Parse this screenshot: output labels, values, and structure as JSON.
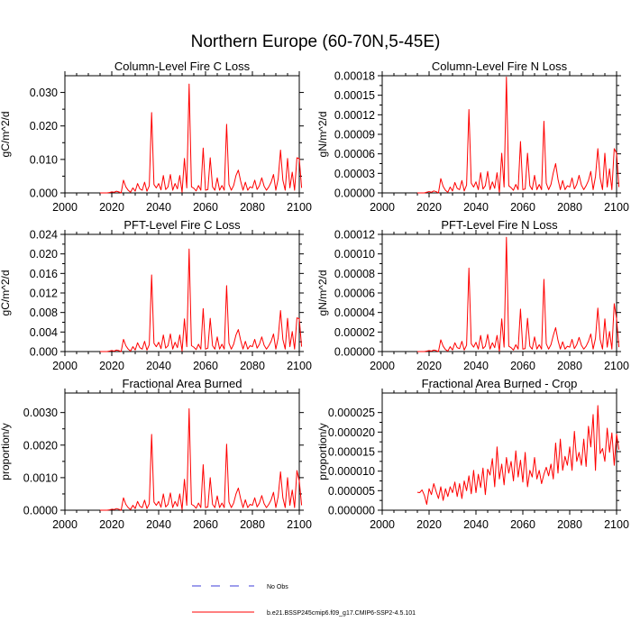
{
  "figure_title": "Northern Europe (60-70N,5-45E)",
  "x_start": 2015,
  "x_step": 1,
  "chart_data": [
    {
      "type": "line",
      "title": "Column-Level Fire C Loss",
      "ylabel": "gC/m^2/d",
      "xlabel": "",
      "xlim": [
        2000,
        2100
      ],
      "ylim": [
        0,
        0.035
      ],
      "yticks": [
        0,
        0.01,
        0.02,
        0.03
      ],
      "ytick_labels": [
        "0.000",
        "0.010",
        "0.020",
        "0.030"
      ],
      "xticks": [
        2000,
        2020,
        2040,
        2060,
        2080,
        2100
      ],
      "xtick_labels": [
        "2000",
        "2020",
        "2040",
        "2060",
        "2080",
        "2100"
      ],
      "series": [
        {
          "name": "b.e21.BSSP245cmip6.f09_g17.CMIP6-SSP2-4.5.101",
          "color": "#ff0000",
          "values": [
            0,
            0,
            0,
            0,
            0.0001,
            0.0003,
            0.0002,
            0.0005,
            0.0003,
            0,
            0.0038,
            0.0018,
            0.0008,
            0.0002,
            0.0015,
            0.0005,
            0.0028,
            0.0012,
            0.0008,
            0.0032,
            0.0005,
            0.0021,
            0.024,
            0.0025,
            0.0015,
            0.0028,
            0.0009,
            0.0052,
            0.001,
            0.0018,
            0.0055,
            0.0008,
            0.0028,
            0.0012,
            0.0052,
            0.0002,
            0.0103,
            0.0015,
            0.0325,
            0.0018,
            0.0014,
            0.0006,
            0.0022,
            0.0008,
            0.0134,
            0.0008,
            0.001,
            0.0105,
            0.0018,
            0.0008,
            0.0045,
            0.0008,
            0.0022,
            0.0008,
            0.0205,
            0.0025,
            0.0008,
            0.0022,
            0.0052,
            0.0068,
            0.0035,
            0.0008,
            0.0032,
            0.0008,
            0.0018,
            0.0015,
            0.0038,
            0.001,
            0.0022,
            0.0045,
            0.002,
            0.0008,
            0.0018,
            0.0032,
            0.0055,
            0.0008,
            0.0042,
            0.0128,
            0.0038,
            0.0008,
            0.0103,
            0.0015,
            0.0062,
            0.0008,
            0.0105,
            0.0102,
            0.0015
          ]
        }
      ]
    },
    {
      "type": "line",
      "title": "Column-Level Fire N Loss",
      "ylabel": "gN/m^2/d",
      "xlabel": "",
      "xlim": [
        2000,
        2100
      ],
      "ylim": [
        0,
        0.00018
      ],
      "yticks": [
        0,
        3e-05,
        6e-05,
        9e-05,
        0.00012,
        0.00015,
        0.00018
      ],
      "ytick_labels": [
        "0.00000",
        "0.00003",
        "0.00006",
        "0.00009",
        "0.00012",
        "0.00015",
        "0.00018"
      ],
      "xticks": [
        2000,
        2020,
        2040,
        2060,
        2080,
        2100
      ],
      "xtick_labels": [
        "2000",
        "2020",
        "2040",
        "2060",
        "2080",
        "2100"
      ],
      "series": [
        {
          "name": "b.e21.BSSP245cmip6.f09_g17.CMIP6-SSP2-4.5.101",
          "color": "#ff0000",
          "values": [
            0,
            0,
            0,
            0,
            1e-06,
            2e-06,
            1e-06,
            3e-06,
            2e-06,
            0,
            2.2e-05,
            1e-05,
            4e-06,
            1e-06,
            9e-06,
            3e-06,
            1.6e-05,
            7e-06,
            5e-06,
            1.9e-05,
            3e-06,
            1.2e-05,
            0.000128,
            1.5e-05,
            9e-06,
            1.7e-05,
            5e-06,
            3.1e-05,
            6e-06,
            1.1e-05,
            3.3e-05,
            5e-06,
            1.7e-05,
            7e-06,
            3.1e-05,
            1e-06,
            6.1e-05,
            9e-06,
            0.000178,
            1.1e-05,
            8e-06,
            4e-06,
            1.3e-05,
            5e-06,
            7.9e-05,
            5e-06,
            6e-06,
            6.1e-05,
            1.1e-05,
            5e-06,
            2.7e-05,
            5e-06,
            1.3e-05,
            5e-06,
            0.00011,
            1.5e-05,
            5e-06,
            1.3e-05,
            3.1e-05,
            4.5e-05,
            2.1e-05,
            5e-06,
            1.9e-05,
            5e-06,
            1.1e-05,
            9e-06,
            2.3e-05,
            6e-06,
            1.3e-05,
            2.7e-05,
            1.2e-05,
            5e-06,
            1.1e-05,
            1.9e-05,
            3.3e-05,
            5e-06,
            2.5e-05,
            6.8e-05,
            2.3e-05,
            5e-06,
            6.1e-05,
            9e-06,
            3.7e-05,
            5e-06,
            6.8e-05,
            6.1e-05,
            9e-06
          ]
        }
      ]
    },
    {
      "type": "line",
      "title": "PFT-Level Fire C Loss",
      "ylabel": "gC/m^2/d",
      "xlabel": "",
      "xlim": [
        2000,
        2100
      ],
      "ylim": [
        0,
        0.024
      ],
      "yticks": [
        0,
        0.004,
        0.008,
        0.012,
        0.016,
        0.02,
        0.024
      ],
      "ytick_labels": [
        "0.000",
        "0.004",
        "0.008",
        "0.012",
        "0.016",
        "0.020",
        "0.024"
      ],
      "xticks": [
        2000,
        2020,
        2040,
        2060,
        2080,
        2100
      ],
      "xtick_labels": [
        "2000",
        "2020",
        "2040",
        "2060",
        "2080",
        "2100"
      ],
      "series": [
        {
          "name": "b.e21.BSSP245cmip6.f09_g17.CMIP6-SSP2-4.5.101",
          "color": "#ff0000",
          "values": [
            0,
            0,
            0,
            0,
            0.0001,
            0.0002,
            0.0001,
            0.0003,
            0.0002,
            0,
            0.0025,
            0.0012,
            0.0005,
            0.0001,
            0.001,
            0.0003,
            0.0018,
            0.0008,
            0.0005,
            0.0021,
            0.0003,
            0.0014,
            0.0157,
            0.0017,
            0.001,
            0.0019,
            0.0006,
            0.0034,
            0.0007,
            0.0012,
            0.0036,
            0.0005,
            0.0019,
            0.0008,
            0.0034,
            0.0001,
            0.0067,
            0.001,
            0.021,
            0.0012,
            0.0009,
            0.0004,
            0.0015,
            0.0005,
            0.0088,
            0.0005,
            0.0007,
            0.0068,
            0.0012,
            0.0005,
            0.003,
            0.0005,
            0.0015,
            0.0005,
            0.0135,
            0.0017,
            0.0005,
            0.0015,
            0.0034,
            0.0045,
            0.0023,
            0.0005,
            0.0021,
            0.0005,
            0.0012,
            0.001,
            0.0025,
            0.0007,
            0.0015,
            0.003,
            0.0013,
            0.0005,
            0.0012,
            0.0021,
            0.0036,
            0.0005,
            0.0028,
            0.0084,
            0.0025,
            0.0005,
            0.0068,
            0.001,
            0.0041,
            0.0005,
            0.0069,
            0.0067,
            0.001
          ]
        }
      ]
    },
    {
      "type": "line",
      "title": "PFT-Level Fire N Loss",
      "ylabel": "gN/m^2/d",
      "xlabel": "",
      "xlim": [
        2000,
        2100
      ],
      "ylim": [
        0,
        0.00012
      ],
      "yticks": [
        0,
        2e-05,
        4e-05,
        6e-05,
        8e-05,
        0.0001,
        0.00012
      ],
      "ytick_labels": [
        "0.00000",
        "0.00002",
        "0.00004",
        "0.00006",
        "0.00008",
        "0.00010",
        "0.00012"
      ],
      "xticks": [
        2000,
        2020,
        2040,
        2060,
        2080,
        2100
      ],
      "xtick_labels": [
        "2000",
        "2020",
        "2040",
        "2060",
        "2080",
        "2100"
      ],
      "series": [
        {
          "name": "b.e21.BSSP245cmip6.f09_g17.CMIP6-SSP2-4.5.101",
          "color": "#ff0000",
          "values": [
            0,
            0,
            0,
            0,
            5e-07,
            1e-06,
            5e-07,
            1.5e-06,
            1e-06,
            0,
            1.2e-05,
            5.5e-06,
            2e-06,
            5e-07,
            5e-06,
            1.5e-06,
            9e-06,
            4e-06,
            3e-06,
            1.05e-05,
            1.5e-06,
            6.5e-06,
            8.55e-05,
            8e-06,
            4.5e-06,
            9.5e-06,
            2.5e-06,
            1.65e-05,
            3e-06,
            5.5e-06,
            1.75e-05,
            2.5e-06,
            9e-06,
            4e-06,
            1.65e-05,
            5e-07,
            3.35e-05,
            4.5e-06,
            0.000117,
            5.5e-06,
            4e-06,
            1.5e-06,
            7e-06,
            2.5e-06,
            4.35e-05,
            2.5e-06,
            3e-06,
            3.4e-05,
            5.5e-06,
            2.5e-06,
            1.5e-05,
            2.5e-06,
            7e-06,
            2.5e-06,
            7.4e-05,
            8e-06,
            2.5e-06,
            7e-06,
            1.65e-05,
            2.45e-05,
            1.15e-05,
            2.5e-06,
            1e-05,
            2.5e-06,
            5.5e-06,
            4.5e-06,
            1.25e-05,
            3e-06,
            7e-06,
            1.45e-05,
            6.5e-06,
            2.5e-06,
            5.5e-06,
            1.05e-05,
            1.8e-05,
            2.5e-06,
            1.35e-05,
            4.45e-05,
            1.25e-05,
            2.5e-06,
            3.35e-05,
            4.5e-06,
            2.05e-05,
            2.5e-06,
            4.9e-05,
            3.35e-05,
            4.5e-06
          ]
        }
      ]
    },
    {
      "type": "line",
      "title": "Fractional Area Burned",
      "ylabel": "proportion/y",
      "xlabel": "",
      "xlim": [
        2000,
        2100
      ],
      "ylim": [
        0,
        0.0036
      ],
      "yticks": [
        0,
        0.001,
        0.002,
        0.003
      ],
      "ytick_labels": [
        "0.0000",
        "0.0010",
        "0.0020",
        "0.0030"
      ],
      "xticks": [
        2000,
        2020,
        2040,
        2060,
        2080,
        2100
      ],
      "xtick_labels": [
        "2000",
        "2020",
        "2040",
        "2060",
        "2080",
        "2100"
      ],
      "series": [
        {
          "name": "b.e21.BSSP245cmip6.f09_g17.CMIP6-SSP2-4.5.101",
          "color": "#ff0000",
          "values": [
            0,
            0,
            0,
            0,
            1e-05,
            3e-05,
            2e-05,
            5e-05,
            3e-05,
            0,
            0.00038,
            0.00018,
            8e-05,
            2e-05,
            0.00015,
            5e-05,
            0.00027,
            0.00012,
            8e-05,
            0.00031,
            5e-05,
            0.0002,
            0.00233,
            0.00025,
            0.00015,
            0.00027,
            9e-05,
            0.0005,
            0.0001,
            0.00018,
            0.00053,
            8e-05,
            0.00027,
            0.00012,
            0.0005,
            2e-05,
            0.00095,
            0.00015,
            0.00312,
            0.00018,
            0.00014,
            6e-05,
            0.00022,
            8e-05,
            0.0014,
            8e-05,
            0.0001,
            0.001,
            0.00018,
            8e-05,
            0.00044,
            8e-05,
            0.00022,
            8e-05,
            0.00203,
            0.00025,
            8e-05,
            0.00022,
            0.0005,
            0.00068,
            0.00035,
            8e-05,
            0.00032,
            8e-05,
            0.00018,
            0.00015,
            0.00038,
            0.0001,
            0.00022,
            0.00045,
            0.0002,
            8e-05,
            0.00018,
            0.00032,
            0.00055,
            8e-05,
            0.00042,
            0.00118,
            0.00038,
            8e-05,
            0.001,
            0.00015,
            0.00062,
            8e-05,
            0.00122,
            0.0009,
            0.00015
          ]
        }
      ]
    },
    {
      "type": "line",
      "title": "Fractional Area Burned - Crop",
      "ylabel": "proportion/y",
      "xlabel": "",
      "xlim": [
        2000,
        2100
      ],
      "ylim": [
        0,
        3e-05
      ],
      "yticks": [
        0,
        5e-06,
        1e-05,
        1.5e-05,
        2e-05,
        2.5e-05
      ],
      "ytick_labels": [
        "0.000000",
        "0.000005",
        "0.000010",
        "0.000015",
        "0.000020",
        "0.000025"
      ],
      "xticks": [
        2000,
        2020,
        2040,
        2060,
        2080,
        2100
      ],
      "xtick_labels": [
        "2000",
        "2020",
        "2040",
        "2060",
        "2080",
        "2100"
      ],
      "series": [
        {
          "name": "b.e21.BSSP245cmip6.f09_g17.CMIP6-SSP2-4.5.101",
          "color": "#ff0000",
          "values": [
            4.6e-06,
            4.5e-06,
            5.2e-06,
            3.8e-06,
            1.5e-06,
            5.5e-06,
            4e-06,
            6.8e-06,
            4.8e-06,
            3e-06,
            6e-06,
            2.5e-06,
            5.5e-06,
            3.5e-06,
            6e-06,
            4.5e-06,
            7.2e-06,
            3.5e-06,
            6.8e-06,
            3e-06,
            7.5e-06,
            5e-06,
            8.8e-06,
            4.2e-06,
            1.02e-05,
            4.5e-06,
            9.2e-06,
            5.8e-06,
            1.08e-05,
            4e-06,
            1.05e-05,
            9e-06,
            1.32e-05,
            6e-06,
            1.62e-05,
            8e-06,
            1.18e-05,
            6.5e-06,
            1.35e-05,
            9.5e-06,
            1.25e-05,
            7.5e-06,
            1.52e-05,
            8.5e-06,
            1.28e-05,
            7.2e-06,
            1.48e-05,
            6e-06,
            1.02e-05,
            8.5e-06,
            1.35e-05,
            8e-06,
            1.02e-05,
            6.8e-06,
            9.2e-06,
            1.1e-05,
            8.8e-06,
            1.18e-05,
            8e-06,
            1.72e-05,
            9.5e-06,
            1.82e-05,
            1.02e-05,
            1.38e-05,
            1.15e-05,
            1.62e-05,
            1.02e-05,
            2.02e-05,
            1.25e-05,
            1.48e-05,
            1.15e-05,
            1.82e-05,
            1.12e-05,
            2.15e-05,
            1.62e-05,
            2.45e-05,
            1.02e-05,
            2.68e-05,
            1.45e-05,
            1.58e-05,
            1.25e-05,
            2.1e-05,
            1.48e-05,
            1.98e-05,
            1.15e-05,
            1.95e-05,
            1.55e-05
          ]
        }
      ]
    }
  ],
  "legend": {
    "entries": [
      {
        "label": "No Obs",
        "color": "#3b3bd9",
        "style": "dashed"
      },
      {
        "label": "b.e21.BSSP245cmip6.f09_g17.CMIP6-SSP2-4.5.101",
        "color": "#ff0000",
        "style": "solid"
      }
    ]
  }
}
